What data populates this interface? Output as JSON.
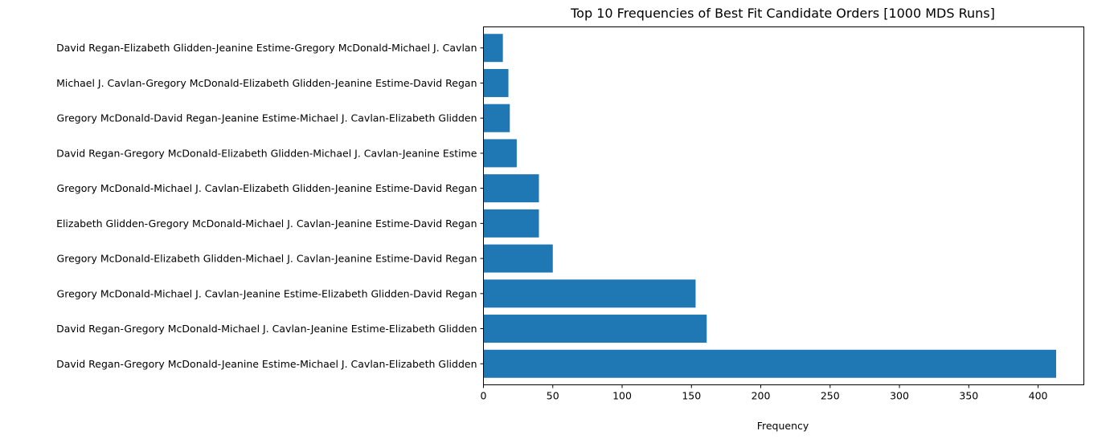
{
  "chart_data": {
    "type": "bar",
    "orientation": "horizontal",
    "title": "Top 10 Frequencies of Best Fit Candidate Orders [1000 MDS Runs]",
    "xlabel": "Frequency",
    "ylabel": "",
    "xlim": [
      0,
      433
    ],
    "xticks": [
      0,
      50,
      100,
      150,
      200,
      250,
      300,
      350,
      400
    ],
    "grid": false,
    "bar_color": "#1f77b4",
    "categories": [
      "David Regan-Gregory McDonald-Jeanine Estime-Michael J. Cavlan-Elizabeth Glidden",
      "David Regan-Gregory McDonald-Michael J. Cavlan-Jeanine Estime-Elizabeth Glidden",
      "Gregory McDonald-Michael J. Cavlan-Jeanine Estime-Elizabeth Glidden-David Regan",
      "Gregory McDonald-Elizabeth Glidden-Michael J. Cavlan-Jeanine Estime-David Regan",
      "Elizabeth Glidden-Gregory McDonald-Michael J. Cavlan-Jeanine Estime-David Regan",
      "Gregory McDonald-Michael J. Cavlan-Elizabeth Glidden-Jeanine Estime-David Regan",
      "David Regan-Gregory McDonald-Elizabeth Glidden-Michael J. Cavlan-Jeanine Estime",
      "Gregory McDonald-David Regan-Jeanine Estime-Michael J. Cavlan-Elizabeth Glidden",
      "Michael J. Cavlan-Gregory McDonald-Elizabeth Glidden-Jeanine Estime-David Regan",
      "David Regan-Elizabeth Glidden-Jeanine Estime-Gregory McDonald-Michael J. Cavlan"
    ],
    "values": [
      413,
      161,
      153,
      50,
      40,
      40,
      24,
      19,
      18,
      14
    ]
  }
}
